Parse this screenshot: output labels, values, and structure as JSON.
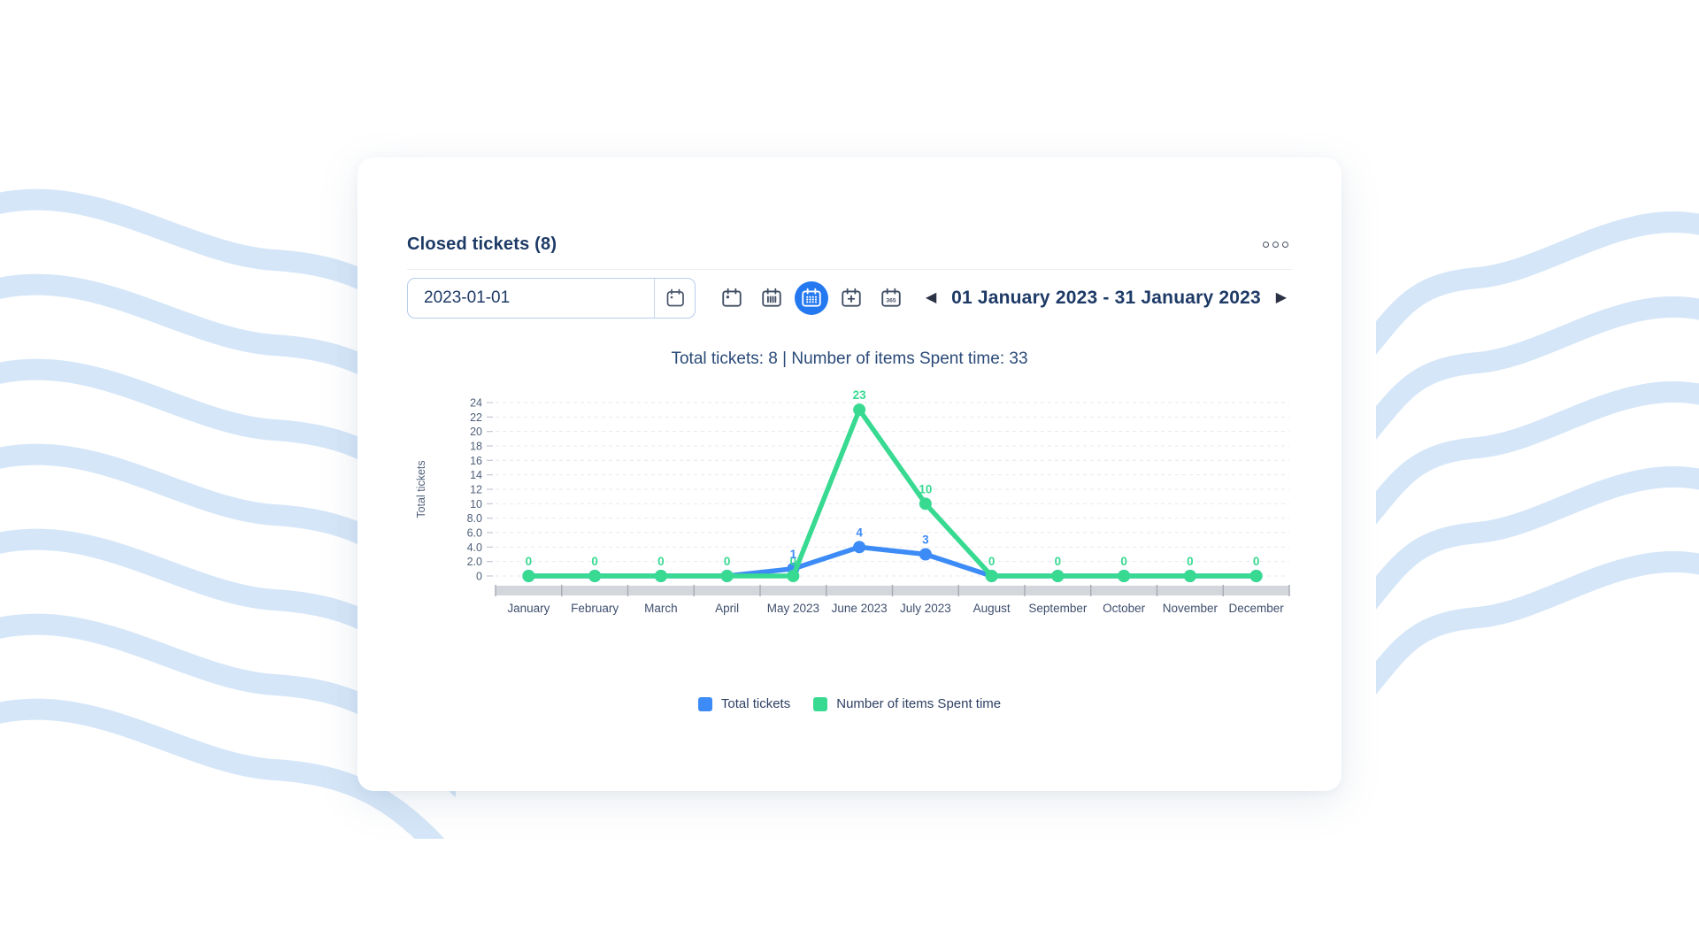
{
  "page": {
    "wave_color": "#d5e6f8"
  },
  "card": {
    "title": "Closed tickets (8)",
    "menu_icon": "ellipsis-menu-icon",
    "controls": {
      "date_input": {
        "value": "2023-01-01",
        "button_icon": "calendar-icon"
      },
      "view_buttons": [
        {
          "id": "day",
          "icon": "calendar-day-icon",
          "selected": false
        },
        {
          "id": "week",
          "icon": "calendar-week-icon",
          "selected": false
        },
        {
          "id": "month",
          "icon": "calendar-month-icon",
          "selected": true
        },
        {
          "id": "custom",
          "icon": "calendar-plus-icon",
          "selected": false
        },
        {
          "id": "year",
          "icon": "calendar-365-icon",
          "selected": false
        }
      ],
      "prev_arrow": "◀",
      "next_arrow": "▶",
      "date_range": "01 January 2023 - 31 January 2023"
    },
    "summary": "Total tickets: 8 | Number of items Spent time: 33"
  },
  "chart_data": {
    "type": "line",
    "title": "",
    "categories": [
      "January",
      "February",
      "March",
      "April",
      "May 2023",
      "June 2023",
      "July 2023",
      "August",
      "September",
      "October",
      "November",
      "December"
    ],
    "series": [
      {
        "name": "Total tickets",
        "color": "#3d8bf6",
        "values": [
          0,
          0,
          0,
          0,
          1,
          4,
          3,
          0,
          0,
          0,
          0,
          0
        ],
        "show_zero_labels": false
      },
      {
        "name": "Number of items Spent time",
        "color": "#38da92",
        "values": [
          0,
          0,
          0,
          0,
          0,
          23,
          10,
          0,
          0,
          0,
          0,
          0
        ],
        "show_zero_labels": true
      }
    ],
    "xlabel": "",
    "ylabel": "Total tickets",
    "ylim": [
      0,
      24
    ],
    "y_ticks": [
      "0",
      "2.0",
      "4.0",
      "6.0",
      "8.0",
      "10",
      "12",
      "14",
      "16",
      "18",
      "20",
      "22",
      "24"
    ],
    "grid": "dashed-horizontal",
    "legend_position": "bottom",
    "has_scrollbar": true
  }
}
